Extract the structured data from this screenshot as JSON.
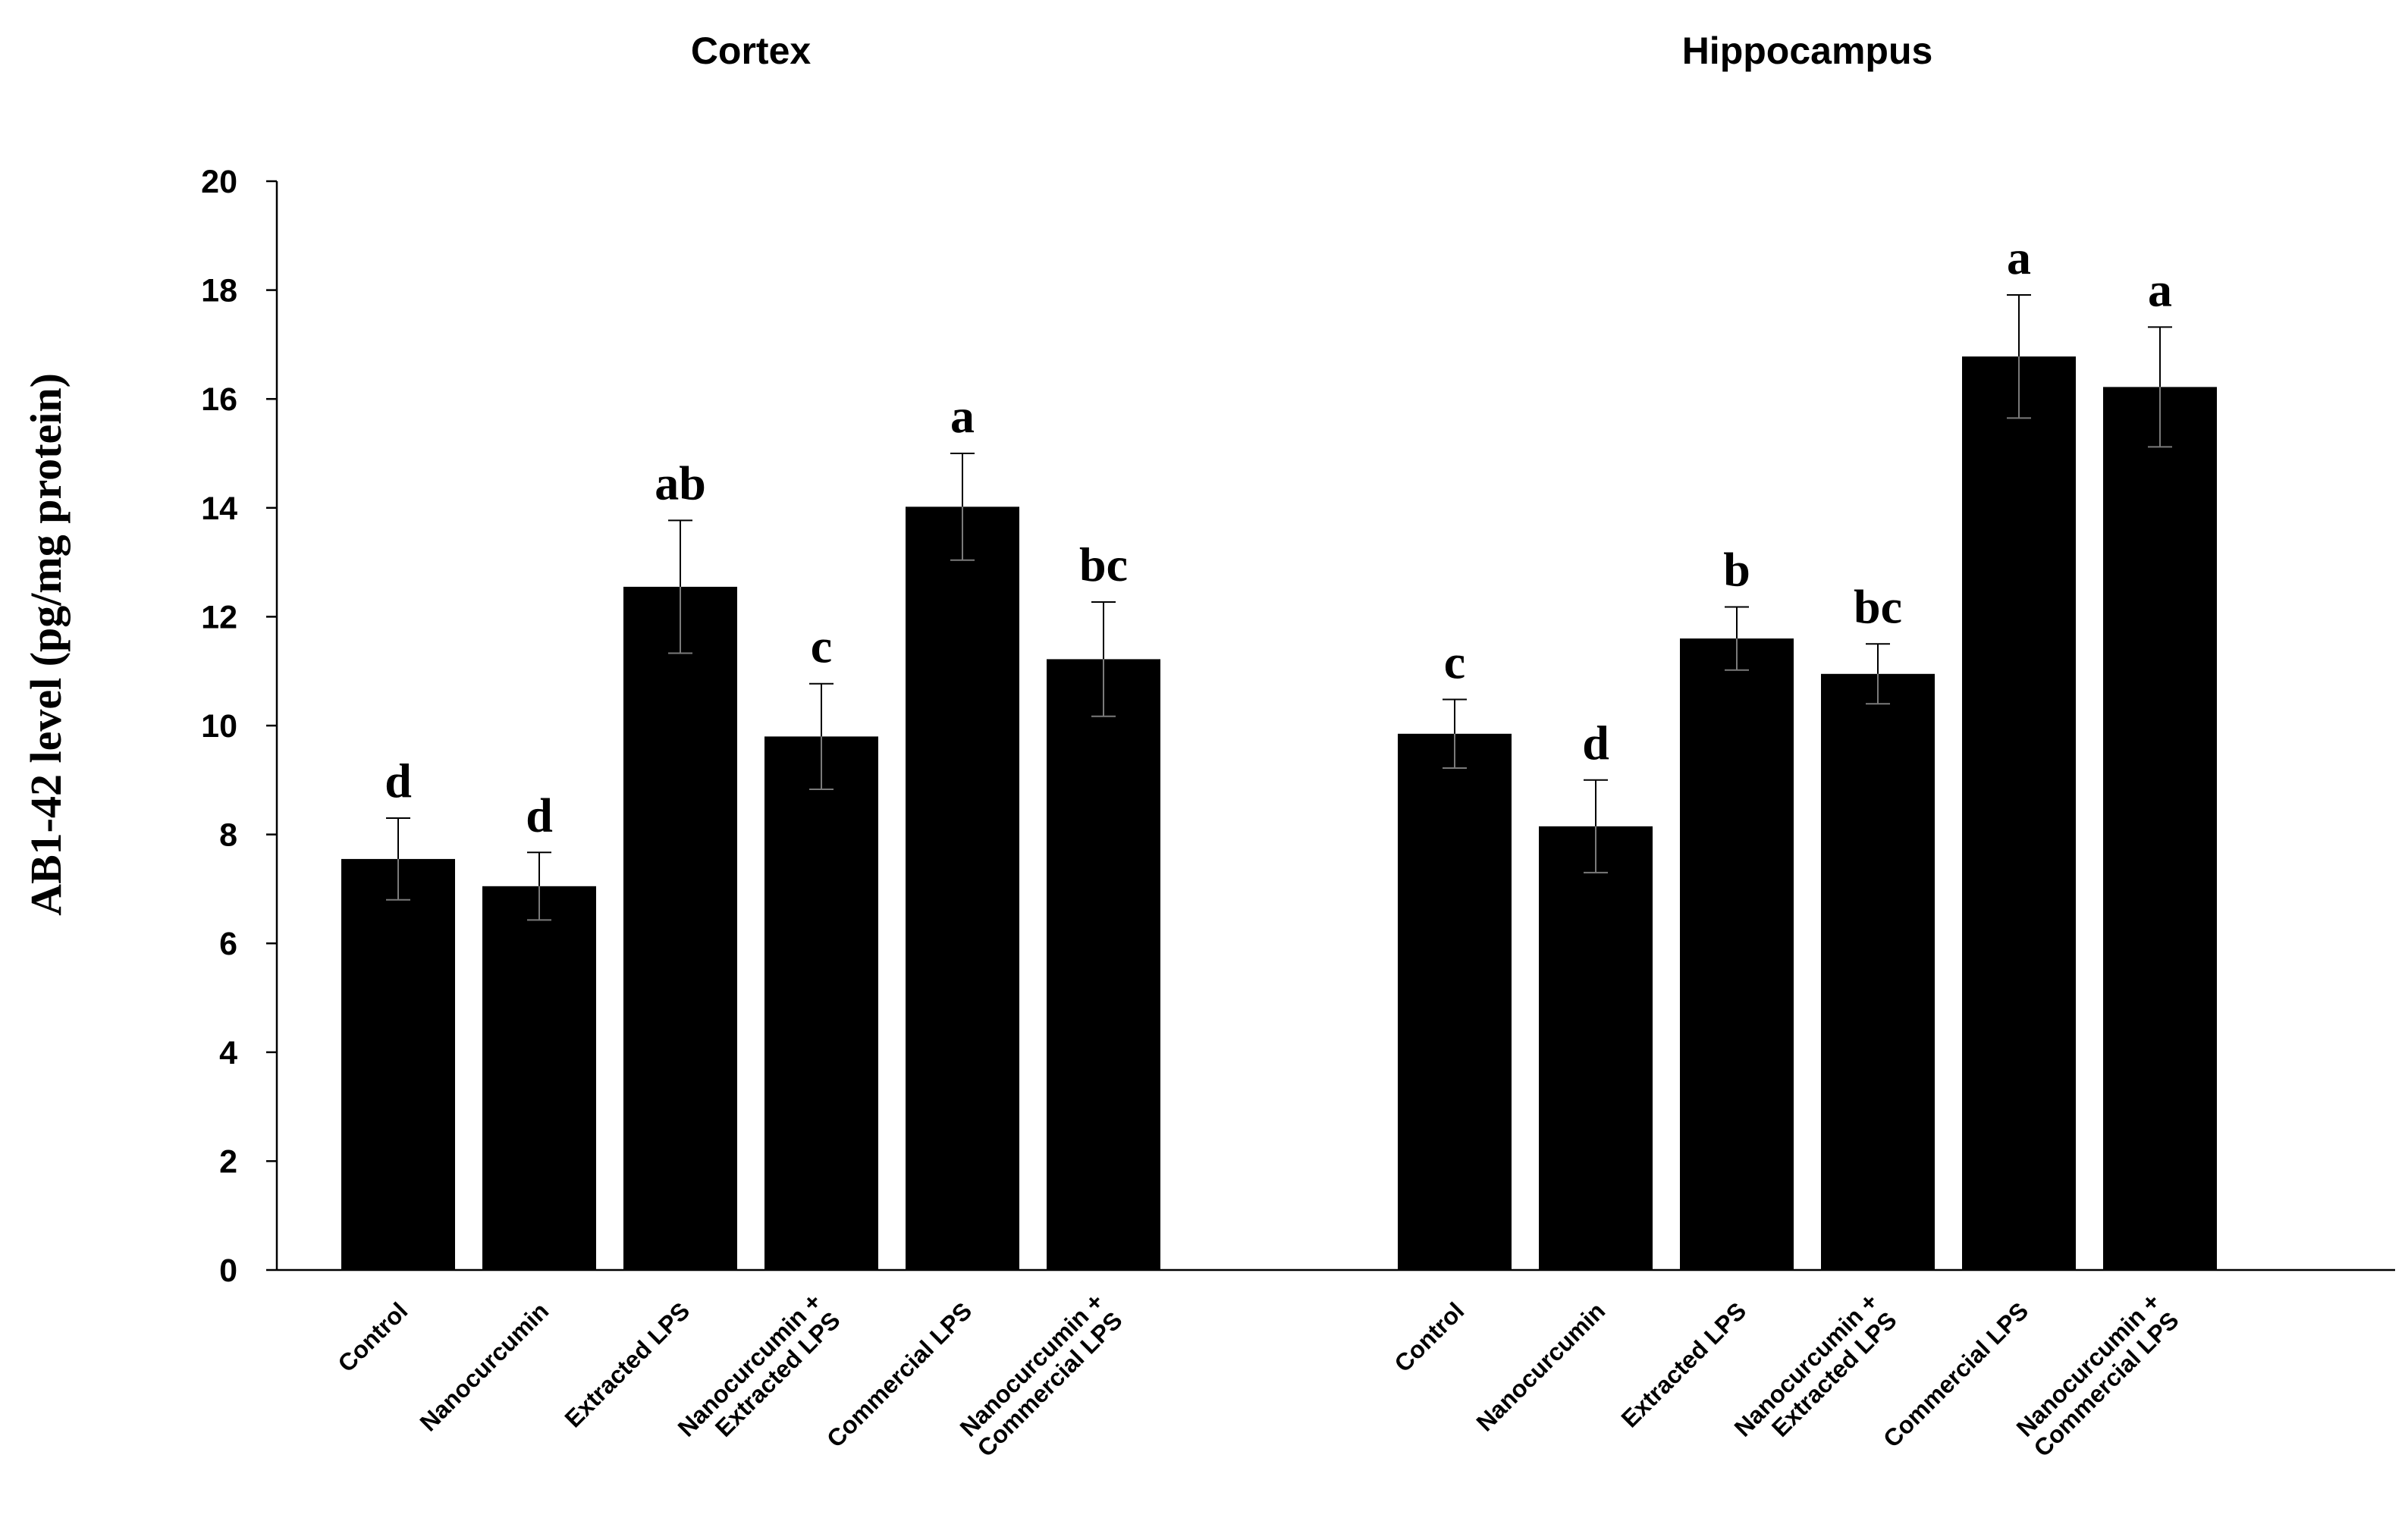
{
  "chart_data": {
    "type": "bar",
    "ylabel": "AB1-42 level (pg/mg protein)",
    "ylim": [
      0,
      20
    ],
    "yticks": [
      0,
      2,
      4,
      6,
      8,
      10,
      12,
      14,
      16,
      18,
      20
    ],
    "grid": false,
    "legend": "none",
    "bar_color": "#000000",
    "groups": [
      {
        "title": "Cortex",
        "bars": [
          {
            "label": [
              "Control"
            ],
            "value": 7.55,
            "error": 0.75,
            "letter": "d"
          },
          {
            "label": [
              "Nanocurcumin"
            ],
            "value": 7.05,
            "error": 0.62,
            "letter": "d"
          },
          {
            "label": [
              "Extracted LPS"
            ],
            "value": 12.55,
            "error": 1.22,
            "letter": "ab"
          },
          {
            "label": [
              "Nanocurcumin +",
              "Extracted LPS"
            ],
            "value": 9.8,
            "error": 0.97,
            "letter": "c"
          },
          {
            "label": [
              "Commercial LPS"
            ],
            "value": 14.02,
            "error": 0.98,
            "letter": "a"
          },
          {
            "label": [
              "Nanocurcumin +",
              "Commercial LPS"
            ],
            "value": 11.22,
            "error": 1.05,
            "letter": "bc"
          }
        ]
      },
      {
        "title": "Hippocampus",
        "bars": [
          {
            "label": [
              "Control"
            ],
            "value": 9.85,
            "error": 0.63,
            "letter": "c"
          },
          {
            "label": [
              "Nanocurcumin"
            ],
            "value": 8.15,
            "error": 0.85,
            "letter": "d"
          },
          {
            "label": [
              "Extracted LPS"
            ],
            "value": 11.6,
            "error": 0.58,
            "letter": "b"
          },
          {
            "label": [
              "Nanocurcumin +",
              "Extracted LPS"
            ],
            "value": 10.95,
            "error": 0.55,
            "letter": "bc"
          },
          {
            "label": [
              "Commercial LPS"
            ],
            "value": 16.78,
            "error": 1.13,
            "letter": "a"
          },
          {
            "label": [
              "Nanocurcumin +",
              "Commercial LPS"
            ],
            "value": 16.22,
            "error": 1.1,
            "letter": "a"
          }
        ]
      }
    ]
  }
}
